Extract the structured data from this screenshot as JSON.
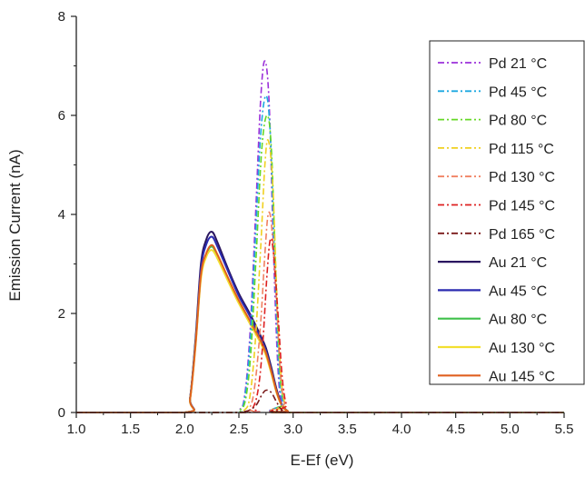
{
  "chart_data": {
    "type": "line",
    "title": "",
    "xlabel": "E-Ef (eV)",
    "ylabel": "Emission Current (nA)",
    "xlim": [
      1.0,
      5.5
    ],
    "ylim": [
      0,
      8
    ],
    "xticks": [
      1.0,
      1.5,
      2.0,
      2.5,
      3.0,
      3.5,
      4.0,
      4.5,
      5.0,
      5.5
    ],
    "xtick_labels": [
      "1.0",
      "1.5",
      "2.0",
      "2.5",
      "3.0",
      "3.5",
      "4.0",
      "4.5",
      "5.0",
      "5.5"
    ],
    "yticks": [
      0,
      2,
      4,
      6,
      8
    ],
    "ytick_labels": [
      "0",
      "2",
      "4",
      "6",
      "8"
    ],
    "grid": false,
    "legend_position": "right",
    "series": [
      {
        "name": "Pd 21 °C",
        "color": "#9b30d9",
        "style": "dashdot",
        "x": [
          1.0,
          2.4,
          2.5,
          2.55,
          2.6,
          2.65,
          2.7,
          2.74,
          2.78,
          2.82,
          2.86,
          2.9,
          3.0,
          5.5
        ],
        "y": [
          0,
          0,
          0.05,
          0.3,
          1.5,
          3.8,
          6.3,
          7.1,
          6.2,
          3.2,
          0.9,
          0.2,
          0,
          0
        ]
      },
      {
        "name": "Pd 45 °C",
        "color": "#1ba8e0",
        "style": "dashdot",
        "x": [
          1.0,
          2.4,
          2.5,
          2.55,
          2.6,
          2.65,
          2.7,
          2.75,
          2.79,
          2.83,
          2.87,
          2.91,
          3.0,
          5.5
        ],
        "y": [
          0,
          0,
          0.04,
          0.25,
          1.3,
          3.4,
          5.6,
          6.4,
          5.6,
          3.0,
          0.8,
          0.2,
          0,
          0
        ]
      },
      {
        "name": "Pd 80 °C",
        "color": "#66d826",
        "style": "dashdot",
        "x": [
          1.0,
          2.4,
          2.5,
          2.56,
          2.61,
          2.66,
          2.71,
          2.76,
          2.8,
          2.84,
          2.88,
          2.92,
          3.0,
          5.5
        ],
        "y": [
          0,
          0,
          0.04,
          0.25,
          1.2,
          3.2,
          5.3,
          6.0,
          5.3,
          2.8,
          0.8,
          0.2,
          0,
          0
        ]
      },
      {
        "name": "Pd 115 °C",
        "color": "#f0d020",
        "style": "dashdot",
        "x": [
          1.0,
          2.45,
          2.55,
          2.6,
          2.65,
          2.7,
          2.74,
          2.77,
          2.81,
          2.85,
          2.89,
          2.93,
          3.0,
          5.5
        ],
        "y": [
          0,
          0,
          0.05,
          0.3,
          1.4,
          3.3,
          5.0,
          5.5,
          4.7,
          2.4,
          0.7,
          0.15,
          0,
          0
        ]
      },
      {
        "name": "Pd 130 °C",
        "color": "#f08060",
        "style": "dashdot",
        "x": [
          1.0,
          2.5,
          2.6,
          2.65,
          2.7,
          2.74,
          2.77,
          2.8,
          2.84,
          2.88,
          2.92,
          3.0,
          5.5
        ],
        "y": [
          0,
          0,
          0.1,
          0.6,
          1.8,
          3.2,
          4.0,
          3.8,
          2.5,
          0.9,
          0.2,
          0,
          0
        ]
      },
      {
        "name": "Pd 145 °C",
        "color": "#dd2020",
        "style": "dashdot",
        "x": [
          1.0,
          2.55,
          2.63,
          2.68,
          2.72,
          2.76,
          2.79,
          2.82,
          2.86,
          2.9,
          2.94,
          3.0,
          5.5
        ],
        "y": [
          0,
          0,
          0.1,
          0.5,
          1.4,
          2.8,
          3.5,
          3.2,
          2.0,
          0.7,
          0.15,
          0,
          0
        ]
      },
      {
        "name": "Pd 165 °C",
        "color": "#7a1a1a",
        "style": "dashdot",
        "x": [
          1.0,
          2.45,
          2.55,
          2.6,
          2.66,
          2.71,
          2.75,
          2.8,
          2.85,
          2.9,
          3.0,
          5.5
        ],
        "y": [
          0,
          0,
          0.02,
          0.05,
          0.15,
          0.35,
          0.45,
          0.4,
          0.2,
          0.05,
          0,
          0
        ]
      },
      {
        "name": "Au 21 °C",
        "color": "#2a1660",
        "style": "solid",
        "x": [
          1.0,
          2.0,
          2.05,
          2.1,
          2.15,
          2.2,
          2.25,
          2.3,
          2.4,
          2.5,
          2.6,
          2.7,
          2.75,
          2.8,
          2.85,
          2.9,
          2.95,
          3.0,
          5.5
        ],
        "y": [
          0,
          0,
          0.3,
          1.5,
          3.0,
          3.5,
          3.65,
          3.45,
          2.9,
          2.4,
          2.0,
          1.55,
          1.3,
          0.9,
          0.45,
          0.15,
          0.03,
          0,
          0
        ]
      },
      {
        "name": "Au 45 °C",
        "color": "#2a2ab0",
        "style": "solid",
        "x": [
          1.0,
          2.0,
          2.05,
          2.1,
          2.15,
          2.2,
          2.25,
          2.3,
          2.4,
          2.5,
          2.6,
          2.7,
          2.75,
          2.8,
          2.85,
          2.9,
          2.95,
          3.0,
          5.5
        ],
        "y": [
          0,
          0,
          0.3,
          1.45,
          2.9,
          3.4,
          3.55,
          3.36,
          2.85,
          2.35,
          1.95,
          1.5,
          1.25,
          0.85,
          0.42,
          0.14,
          0.03,
          0,
          0
        ]
      },
      {
        "name": "Au 80 °C",
        "color": "#3fc04a",
        "style": "solid",
        "x": [
          1.0,
          2.0,
          2.05,
          2.1,
          2.15,
          2.2,
          2.25,
          2.3,
          2.4,
          2.5,
          2.6,
          2.7,
          2.75,
          2.8,
          2.85,
          2.9,
          2.95,
          3.0,
          5.5
        ],
        "y": [
          0,
          0,
          0.28,
          1.4,
          2.75,
          3.2,
          3.35,
          3.18,
          2.7,
          2.25,
          1.85,
          1.45,
          1.2,
          0.8,
          0.4,
          0.13,
          0.03,
          0,
          0
        ]
      },
      {
        "name": "Au 130 °C",
        "color": "#f2e030",
        "style": "solid",
        "x": [
          1.0,
          2.0,
          2.05,
          2.1,
          2.15,
          2.2,
          2.25,
          2.3,
          2.4,
          2.5,
          2.6,
          2.7,
          2.75,
          2.8,
          2.85,
          2.9,
          2.95,
          3.0,
          5.5
        ],
        "y": [
          0,
          0,
          0.27,
          1.35,
          2.7,
          3.15,
          3.28,
          3.12,
          2.65,
          2.2,
          1.8,
          1.4,
          1.15,
          0.78,
          0.38,
          0.12,
          0.03,
          0,
          0
        ]
      },
      {
        "name": "Au 145 °C",
        "color": "#e06020",
        "style": "solid",
        "x": [
          1.0,
          2.0,
          2.05,
          2.1,
          2.15,
          2.2,
          2.25,
          2.3,
          2.4,
          2.5,
          2.6,
          2.7,
          2.75,
          2.8,
          2.85,
          2.9,
          2.95,
          3.0,
          5.5
        ],
        "y": [
          0,
          0,
          0.28,
          1.38,
          2.78,
          3.22,
          3.38,
          3.2,
          2.72,
          2.26,
          1.86,
          1.45,
          1.2,
          0.82,
          0.4,
          0.13,
          0.03,
          0,
          0
        ]
      }
    ]
  }
}
